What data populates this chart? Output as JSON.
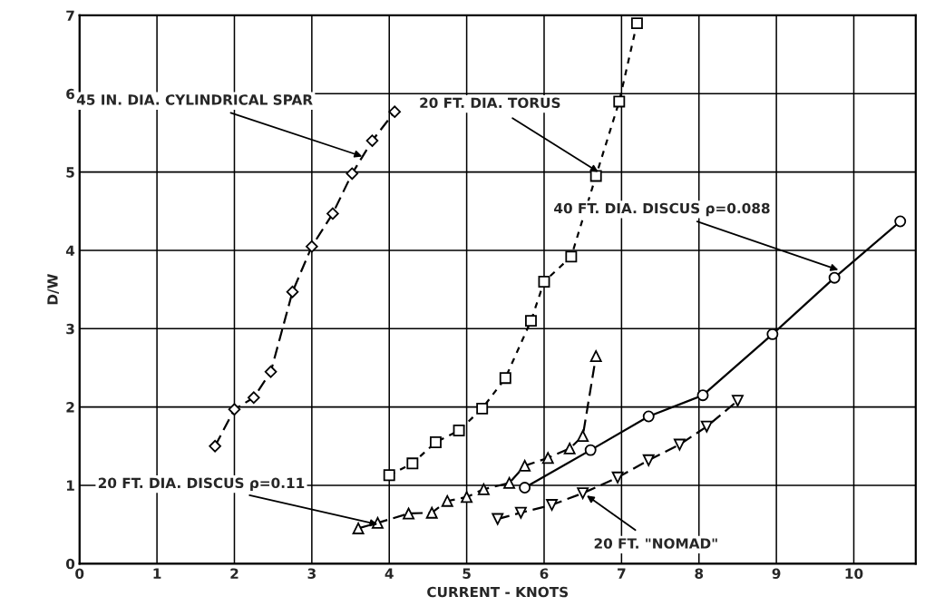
{
  "chart_data": {
    "type": "line",
    "xlabel": "CURRENT - KNOTS",
    "ylabel": "D/W",
    "xlim": [
      0,
      10.8
    ],
    "ylim": [
      0,
      7
    ],
    "xticks": [
      0,
      1,
      2,
      3,
      4,
      5,
      6,
      7,
      8,
      9,
      10
    ],
    "yticks": [
      0,
      1,
      2,
      3,
      4,
      5,
      6,
      7
    ],
    "grid": true,
    "series": [
      {
        "color": "#000000",
        "marker": "diamond",
        "line_style": "dashed",
        "x": [
          1.75,
          2.0,
          2.25,
          2.47,
          2.75,
          3.0,
          3.27,
          3.52,
          3.78,
          4.07
        ],
        "values": [
          1.5,
          1.97,
          2.12,
          2.45,
          3.47,
          4.05,
          4.47,
          4.98,
          5.4,
          5.77
        ]
      },
      {
        "color": "#000000",
        "marker": "square",
        "line_style": "dotted",
        "x": [
          4.0,
          4.3,
          4.6,
          4.9,
          5.2,
          5.5,
          5.83,
          6.0,
          6.35,
          6.67,
          6.97,
          7.2
        ],
        "values": [
          1.13,
          1.28,
          1.55,
          1.7,
          1.98,
          2.37,
          3.1,
          3.6,
          3.92,
          4.95,
          5.9,
          6.9
        ]
      },
      {
        "color": "#000000",
        "marker": "triangle",
        "line_style": "dashed",
        "x": [
          3.6,
          3.85,
          4.25,
          4.55,
          4.75,
          5.0,
          5.22,
          5.55,
          5.75,
          6.05,
          6.33,
          6.5,
          6.67
        ],
        "values": [
          0.45,
          0.52,
          0.64,
          0.65,
          0.8,
          0.85,
          0.95,
          1.03,
          1.25,
          1.35,
          1.47,
          1.63,
          2.65
        ]
      },
      {
        "color": "#000000",
        "marker": "circle",
        "line_style": "solid",
        "x": [
          5.75,
          6.6,
          7.35,
          8.05,
          8.95,
          9.75,
          10.6
        ],
        "values": [
          0.97,
          1.45,
          1.88,
          2.15,
          2.93,
          3.65,
          4.37
        ]
      },
      {
        "color": "#000000",
        "marker": "triangle_down",
        "line_style": "dashed",
        "x": [
          5.4,
          5.7,
          6.1,
          6.5,
          6.95,
          7.35,
          7.75,
          8.1,
          8.5
        ],
        "values": [
          0.57,
          0.65,
          0.75,
          0.9,
          1.1,
          1.32,
          1.52,
          1.75,
          2.08
        ]
      }
    ],
    "annotations": [
      {
        "text": "45 IN. DIA. CYLINDRICAL SPAR",
        "x": 3.65,
        "y": 5.2
      },
      {
        "text": "20 FT. DIA. TORUS",
        "x": 6.7,
        "y": 5.0
      },
      {
        "text": "40 FT. DIA. DISCUS ρ=0.088",
        "x": 9.8,
        "y": 3.75
      },
      {
        "text": "20 FT. DIA. DISCUS ρ=0.11",
        "x": 3.85,
        "y": 0.5
      },
      {
        "text": "20 FT. \"NOMAD\"",
        "x": 6.55,
        "y": 0.87
      }
    ]
  }
}
